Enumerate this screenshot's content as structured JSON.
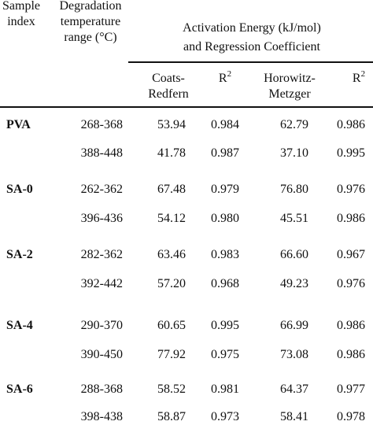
{
  "headers": {
    "sample_line1": "Sample",
    "sample_line2": "index",
    "deg_line1": "Degradation",
    "deg_line2": "temperature",
    "deg_line3": "range (°C)",
    "group_line1": "Activation Energy (kJ/mol)",
    "group_line2": "and Regression Coefficient",
    "cr_line1": "Coats-",
    "cr_line2": "Redfern",
    "r2_base": "R",
    "r2_sup": "2",
    "hm_line1": "Horowitz-",
    "hm_line2": "Metzger"
  },
  "rows": [
    {
      "sample": "PVA",
      "range": "268-368",
      "cr": "53.94",
      "r2a": "0.984",
      "hm": "62.79",
      "r2b": "0.986"
    },
    {
      "sample": "",
      "range": "388-448",
      "cr": "41.78",
      "r2a": "0.987",
      "hm": "37.10",
      "r2b": "0.995"
    },
    {
      "sample": "SA-0",
      "range": "262-362",
      "cr": "67.48",
      "r2a": "0.979",
      "hm": "76.80",
      "r2b": "0.976"
    },
    {
      "sample": "",
      "range": "396-436",
      "cr": "54.12",
      "r2a": "0.980",
      "hm": "45.51",
      "r2b": "0.986"
    },
    {
      "sample": "SA-2",
      "range": "282-362",
      "cr": "63.46",
      "r2a": "0.983",
      "hm": "66.60",
      "r2b": "0.967"
    },
    {
      "sample": "",
      "range": "392-442",
      "cr": "57.20",
      "r2a": "0.968",
      "hm": "49.23",
      "r2b": "0.976"
    },
    {
      "sample": "SA-4",
      "range": "290-370",
      "cr": "60.65",
      "r2a": "0.995",
      "hm": "66.99",
      "r2b": "0.986"
    },
    {
      "sample": "",
      "range": "390-450",
      "cr": "77.92",
      "r2a": "0.975",
      "hm": "73.08",
      "r2b": "0.986"
    },
    {
      "sample": "SA-6",
      "range": "288-368",
      "cr": "58.52",
      "r2a": "0.981",
      "hm": "64.37",
      "r2b": "0.977"
    },
    {
      "sample": "",
      "range": "398-438",
      "cr": "58.87",
      "r2a": "0.973",
      "hm": "58.41",
      "r2b": "0.978"
    }
  ]
}
